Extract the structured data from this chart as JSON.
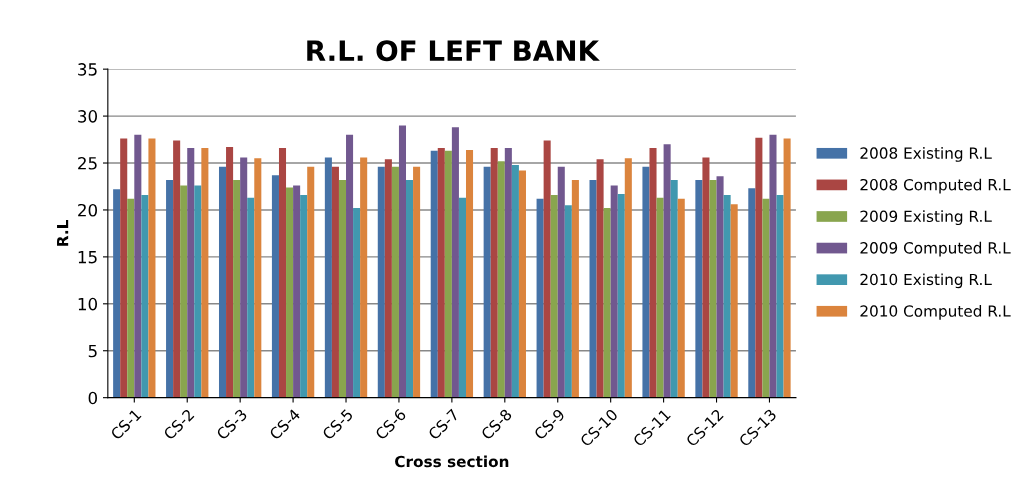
{
  "chart_data": {
    "type": "bar",
    "title": "R.L. OF LEFT BANK",
    "xlabel": "Cross section",
    "ylabel": "R.L",
    "categories": [
      "CS-1",
      "CS-2",
      "CS-3",
      "CS-4",
      "CS-5",
      "CS-6",
      "CS-7",
      "CS-8",
      "CS-9",
      "CS-10",
      "CS-11",
      "CS-12",
      "CS-13"
    ],
    "series": [
      {
        "name": "2008 Existing R.L",
        "color": "#4572a7",
        "values": [
          22.2,
          23.2,
          24.6,
          23.7,
          25.6,
          24.6,
          26.3,
          24.6,
          21.2,
          23.2,
          24.6,
          23.2,
          22.3
        ]
      },
      {
        "name": "2008 Computed R.L",
        "color": "#aa4643",
        "values": [
          27.6,
          27.4,
          26.7,
          26.6,
          24.6,
          25.4,
          26.6,
          26.6,
          27.4,
          25.4,
          26.6,
          25.6,
          27.7
        ]
      },
      {
        "name": "2009 Existing R.L",
        "color": "#89a54e",
        "values": [
          21.2,
          22.6,
          23.2,
          22.4,
          23.2,
          24.6,
          26.3,
          25.2,
          21.6,
          20.2,
          21.3,
          23.2,
          21.2
        ]
      },
      {
        "name": "2009 Computed R.L",
        "color": "#71588f",
        "values": [
          28.0,
          26.6,
          25.6,
          22.6,
          28.0,
          29.0,
          28.8,
          26.6,
          24.6,
          22.6,
          27.0,
          23.6,
          28.0
        ]
      },
      {
        "name": "2010 Existing R.L",
        "color": "#4198af",
        "values": [
          21.6,
          22.6,
          21.3,
          21.6,
          20.2,
          23.2,
          21.3,
          24.8,
          20.5,
          21.7,
          23.2,
          21.6,
          21.6
        ]
      },
      {
        "name": "2010 Computed R.L",
        "color": "#db843d",
        "values": [
          27.6,
          26.6,
          25.5,
          24.6,
          25.6,
          24.6,
          26.4,
          24.2,
          23.2,
          25.5,
          21.2,
          20.6,
          27.6
        ]
      }
    ],
    "ylim": [
      0,
      35
    ],
    "yticks": [
      0,
      5,
      10,
      15,
      20,
      25,
      30,
      35
    ],
    "grid": "y",
    "legend": "right"
  }
}
